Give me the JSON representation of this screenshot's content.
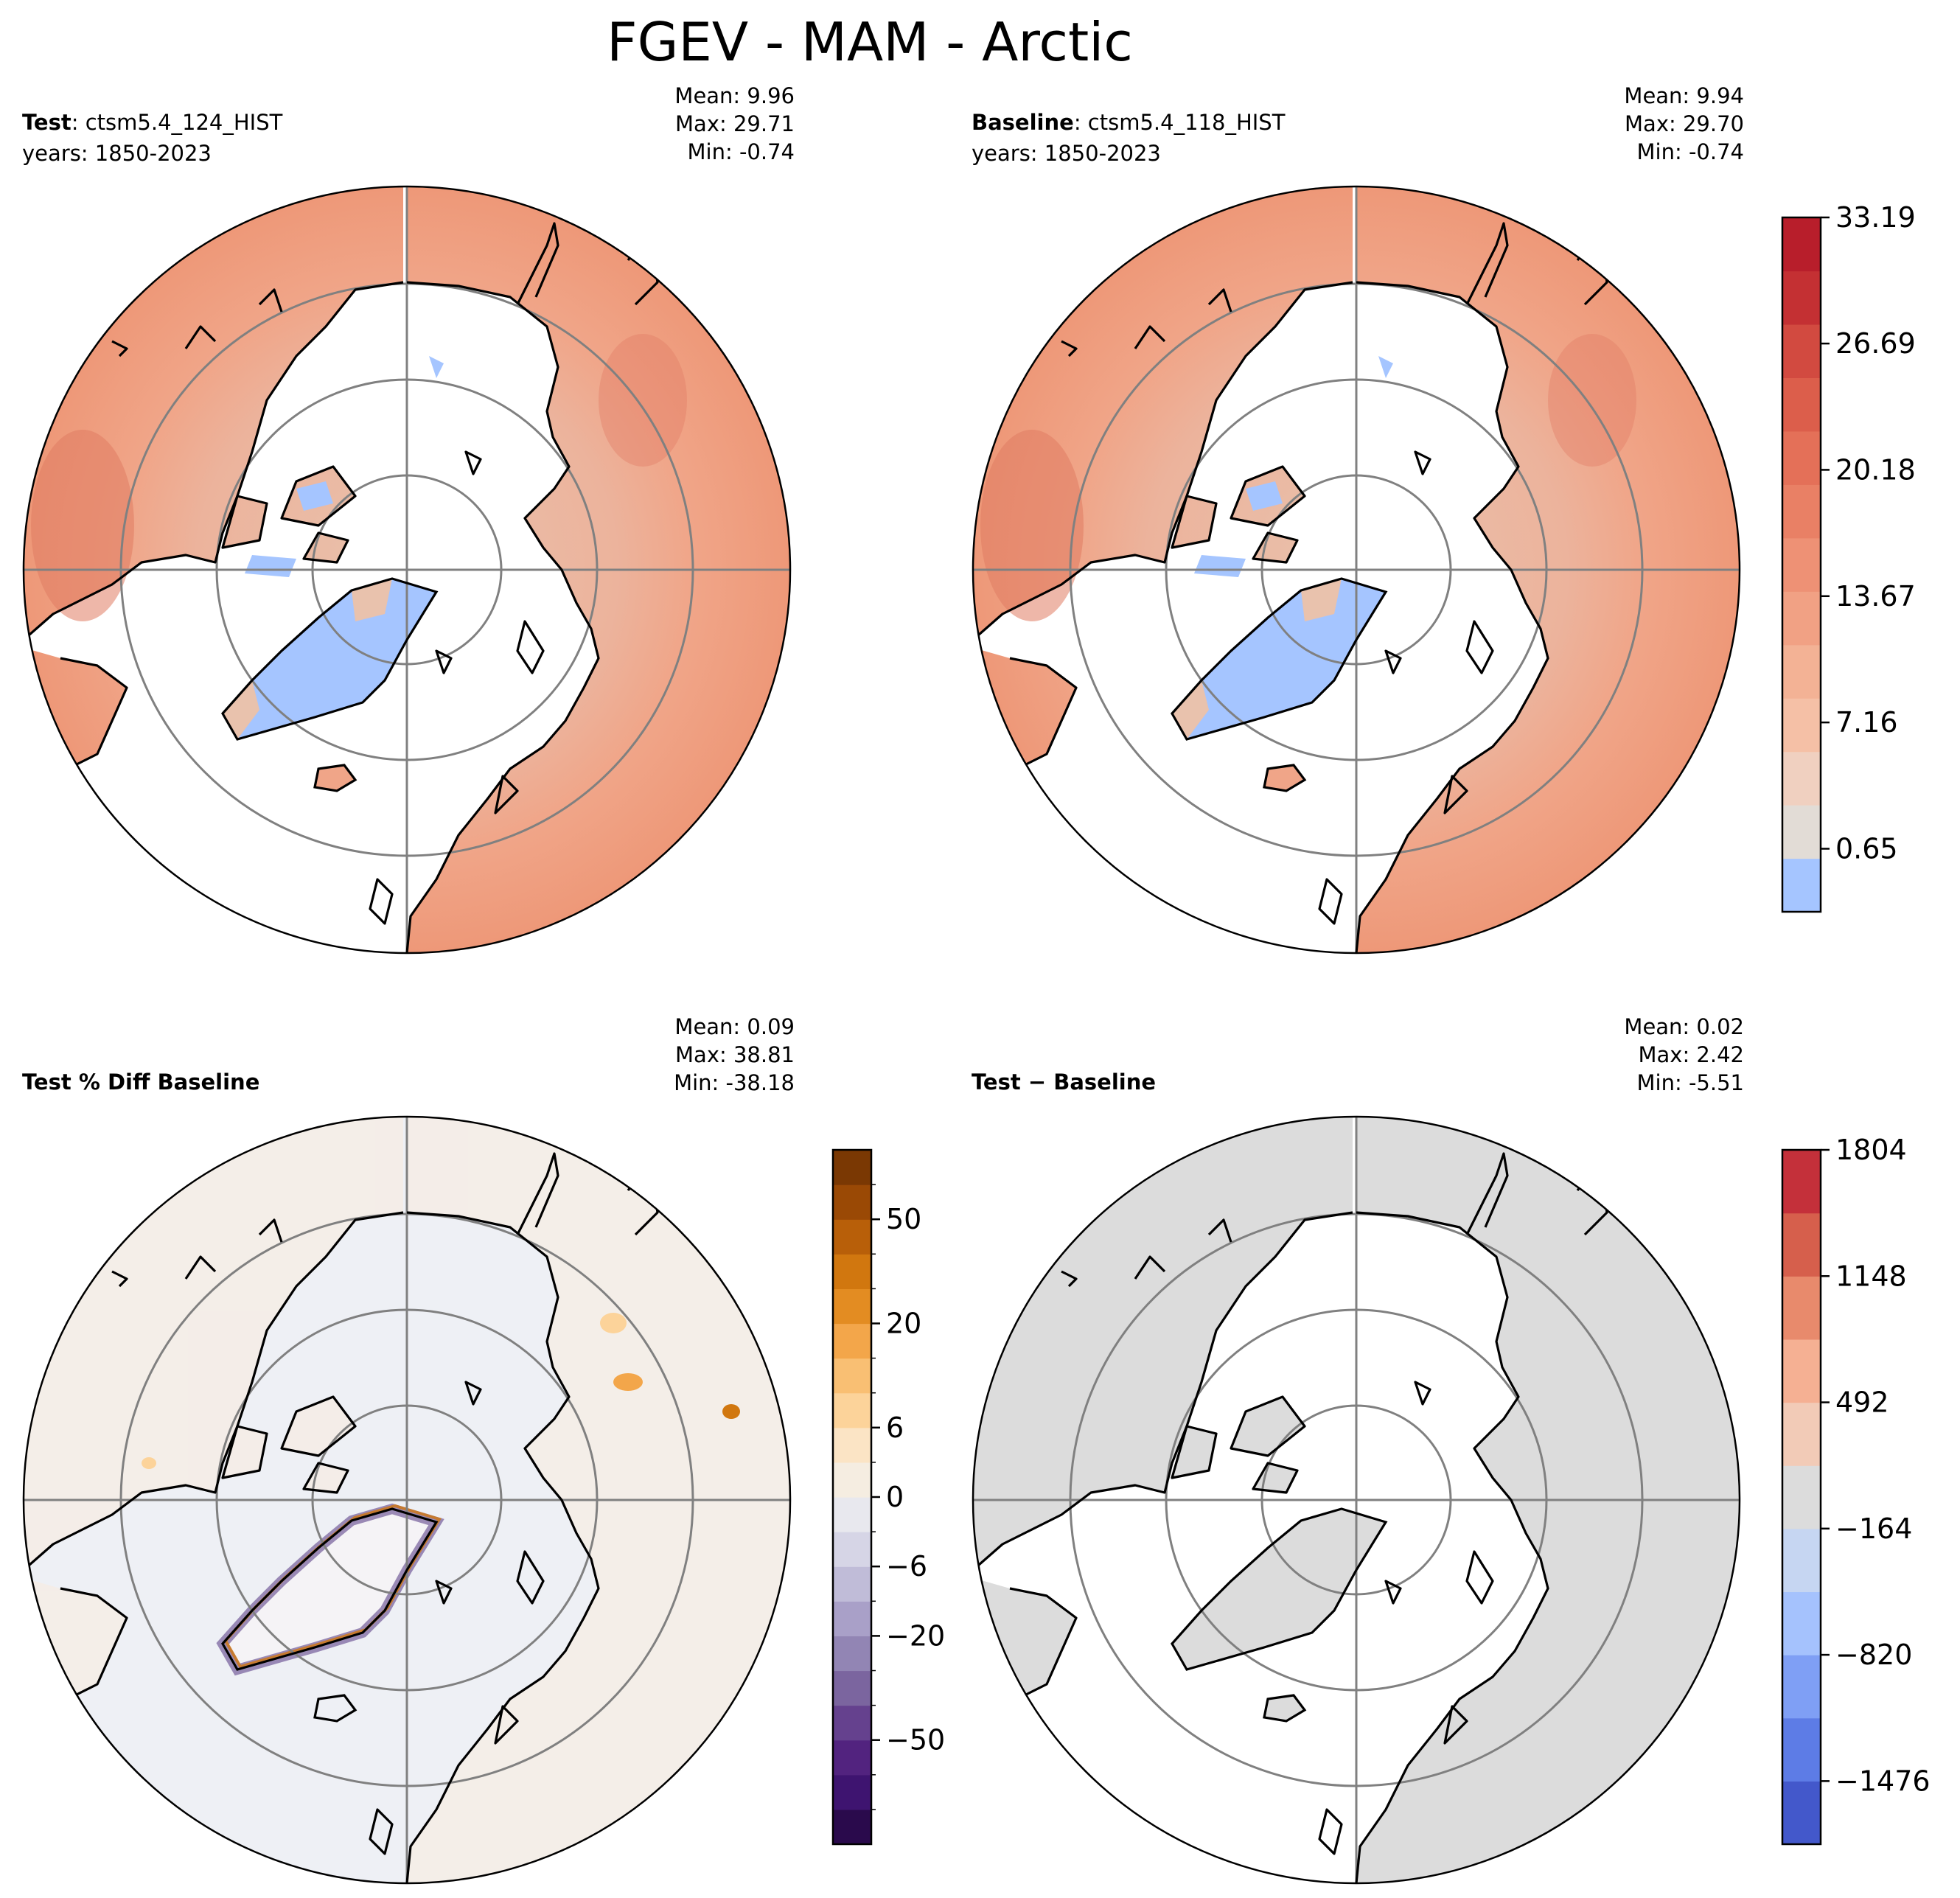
{
  "figure": {
    "title": "FGEV - MAM - Arctic"
  },
  "panels": [
    {
      "id": "test",
      "label_bold": "Test",
      "label_rest": ": ctsm5.4_124_HIST",
      "subtitle": "years: 1850-2023",
      "stats": {
        "mean": "Mean:  9.96",
        "max": "Max: 29.71",
        "min": "Min: -0.74"
      },
      "fill": "energy"
    },
    {
      "id": "baseline",
      "label_bold": "Baseline",
      "label_rest": ": ctsm5.4_118_HIST",
      "subtitle": "years: 1850-2023",
      "stats": {
        "mean": "Mean:  9.94",
        "max": "Max: 29.70",
        "min": "Min: -0.74"
      },
      "fill": "energy"
    },
    {
      "id": "pctdiff",
      "label_bold": "Test % Diff Baseline",
      "label_rest": "",
      "subtitle": "",
      "stats": {
        "mean": "Mean:  0.09",
        "max": "Max: 38.81",
        "min": "Min: -38.18"
      },
      "fill": "pct"
    },
    {
      "id": "diff",
      "label_bold": "Test − Baseline",
      "label_rest": "",
      "subtitle": "",
      "stats": {
        "mean": "Mean:  0.02",
        "max": "Max:  2.42",
        "min": "Min: -5.51"
      },
      "fill": "diff"
    }
  ],
  "colorbars": [
    {
      "id": "cbar-values",
      "colors": [
        "#a5c5ff",
        "#e2dcd6",
        "#f0d0c0",
        "#f5c0a6",
        "#f3b295",
        "#f1a184",
        "#ee9175",
        "#e98065",
        "#e47058",
        "#dc5e4b",
        "#d24a40",
        "#c43033",
        "#b81e2b"
      ],
      "ticks": [
        "33.19",
        "26.69",
        "20.18",
        "13.67",
        "7.16",
        "0.65"
      ],
      "tick_values": [
        33.19,
        26.69,
        20.18,
        13.67,
        7.16,
        0.65
      ],
      "range": [
        -2.6,
        33.19
      ]
    },
    {
      "id": "cbar-pct",
      "colors": [
        "#2a0a4c",
        "#3e1470",
        "#52237f",
        "#65418e",
        "#7b659f",
        "#9285b4",
        "#a9a0c8",
        "#c0bcd8",
        "#d6d5e6",
        "#e8e8ee",
        "#f5ede1",
        "#fbe4c5",
        "#fcd39a",
        "#f9bf73",
        "#f3a64a",
        "#e38c22",
        "#d1770f",
        "#b85f09",
        "#9a4905",
        "#7a3803"
      ],
      "ticks": [
        "50",
        "20",
        "6",
        "0",
        "−6",
        "−20",
        "−50"
      ],
      "tick_positions": [
        14,
        11,
        8,
        6,
        4,
        2,
        -1
      ],
      "steps": 16
    },
    {
      "id": "cbar-diff",
      "colors": [
        "#4358cb",
        "#5d7ce6",
        "#7f9ff5",
        "#a5c2fd",
        "#c6d6f2",
        "#dcdcdc",
        "#f2cbb7",
        "#f5b093",
        "#e88a6c",
        "#d65f4c",
        "#c4303a"
      ],
      "ticks": [
        "1804",
        "1148",
        "492",
        "−164",
        "−820",
        "−1476"
      ],
      "tick_values": [
        1804,
        1148,
        492,
        -164,
        -820,
        -1476
      ],
      "range": [
        -1804,
        1804
      ]
    }
  ],
  "colors": {
    "land_main": "#f0a588",
    "land_light": "#e9c2ad",
    "land_dark": "#e07b63",
    "ice": "#a5c5ff",
    "pct_bg": "#eef0f5",
    "pct_warm": "#fbe9d6",
    "diff_land": "#dcdcdc",
    "grid": "#808080",
    "coast": "#000000"
  }
}
